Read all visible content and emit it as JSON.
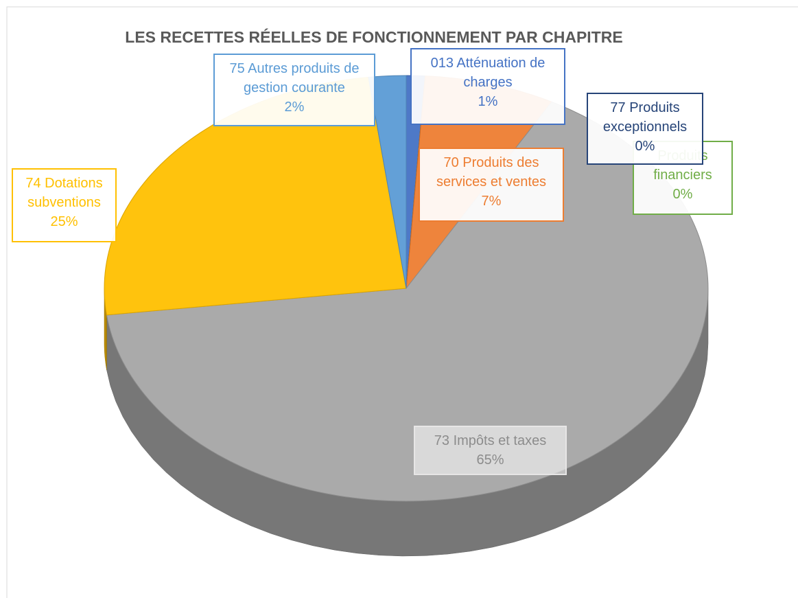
{
  "chart_data": {
    "type": "pie",
    "title": "LES RECETTES RÉELLES DE FONCTIONNEMENT PAR CHAPITRE",
    "categories": [
      "013 Atténuation de charges",
      "77 Produits exceptionnels",
      "Produits financiers",
      "70 Produits des services et ventes",
      "73 Impôts et taxes",
      "74 Dotations subventions",
      "75 Autres produits de gestion courante"
    ],
    "values": [
      1,
      0,
      0,
      7,
      65,
      25,
      2
    ],
    "value_labels": [
      "1%",
      "0%",
      "0%",
      "7%",
      "65%",
      "25%",
      "2%"
    ],
    "colors": [
      "#4472c4",
      "#264478",
      "#70ad47",
      "#ed7d31",
      "#a5a5a5",
      "#ffc000",
      "#5b9bd5"
    ],
    "three_d": true
  }
}
